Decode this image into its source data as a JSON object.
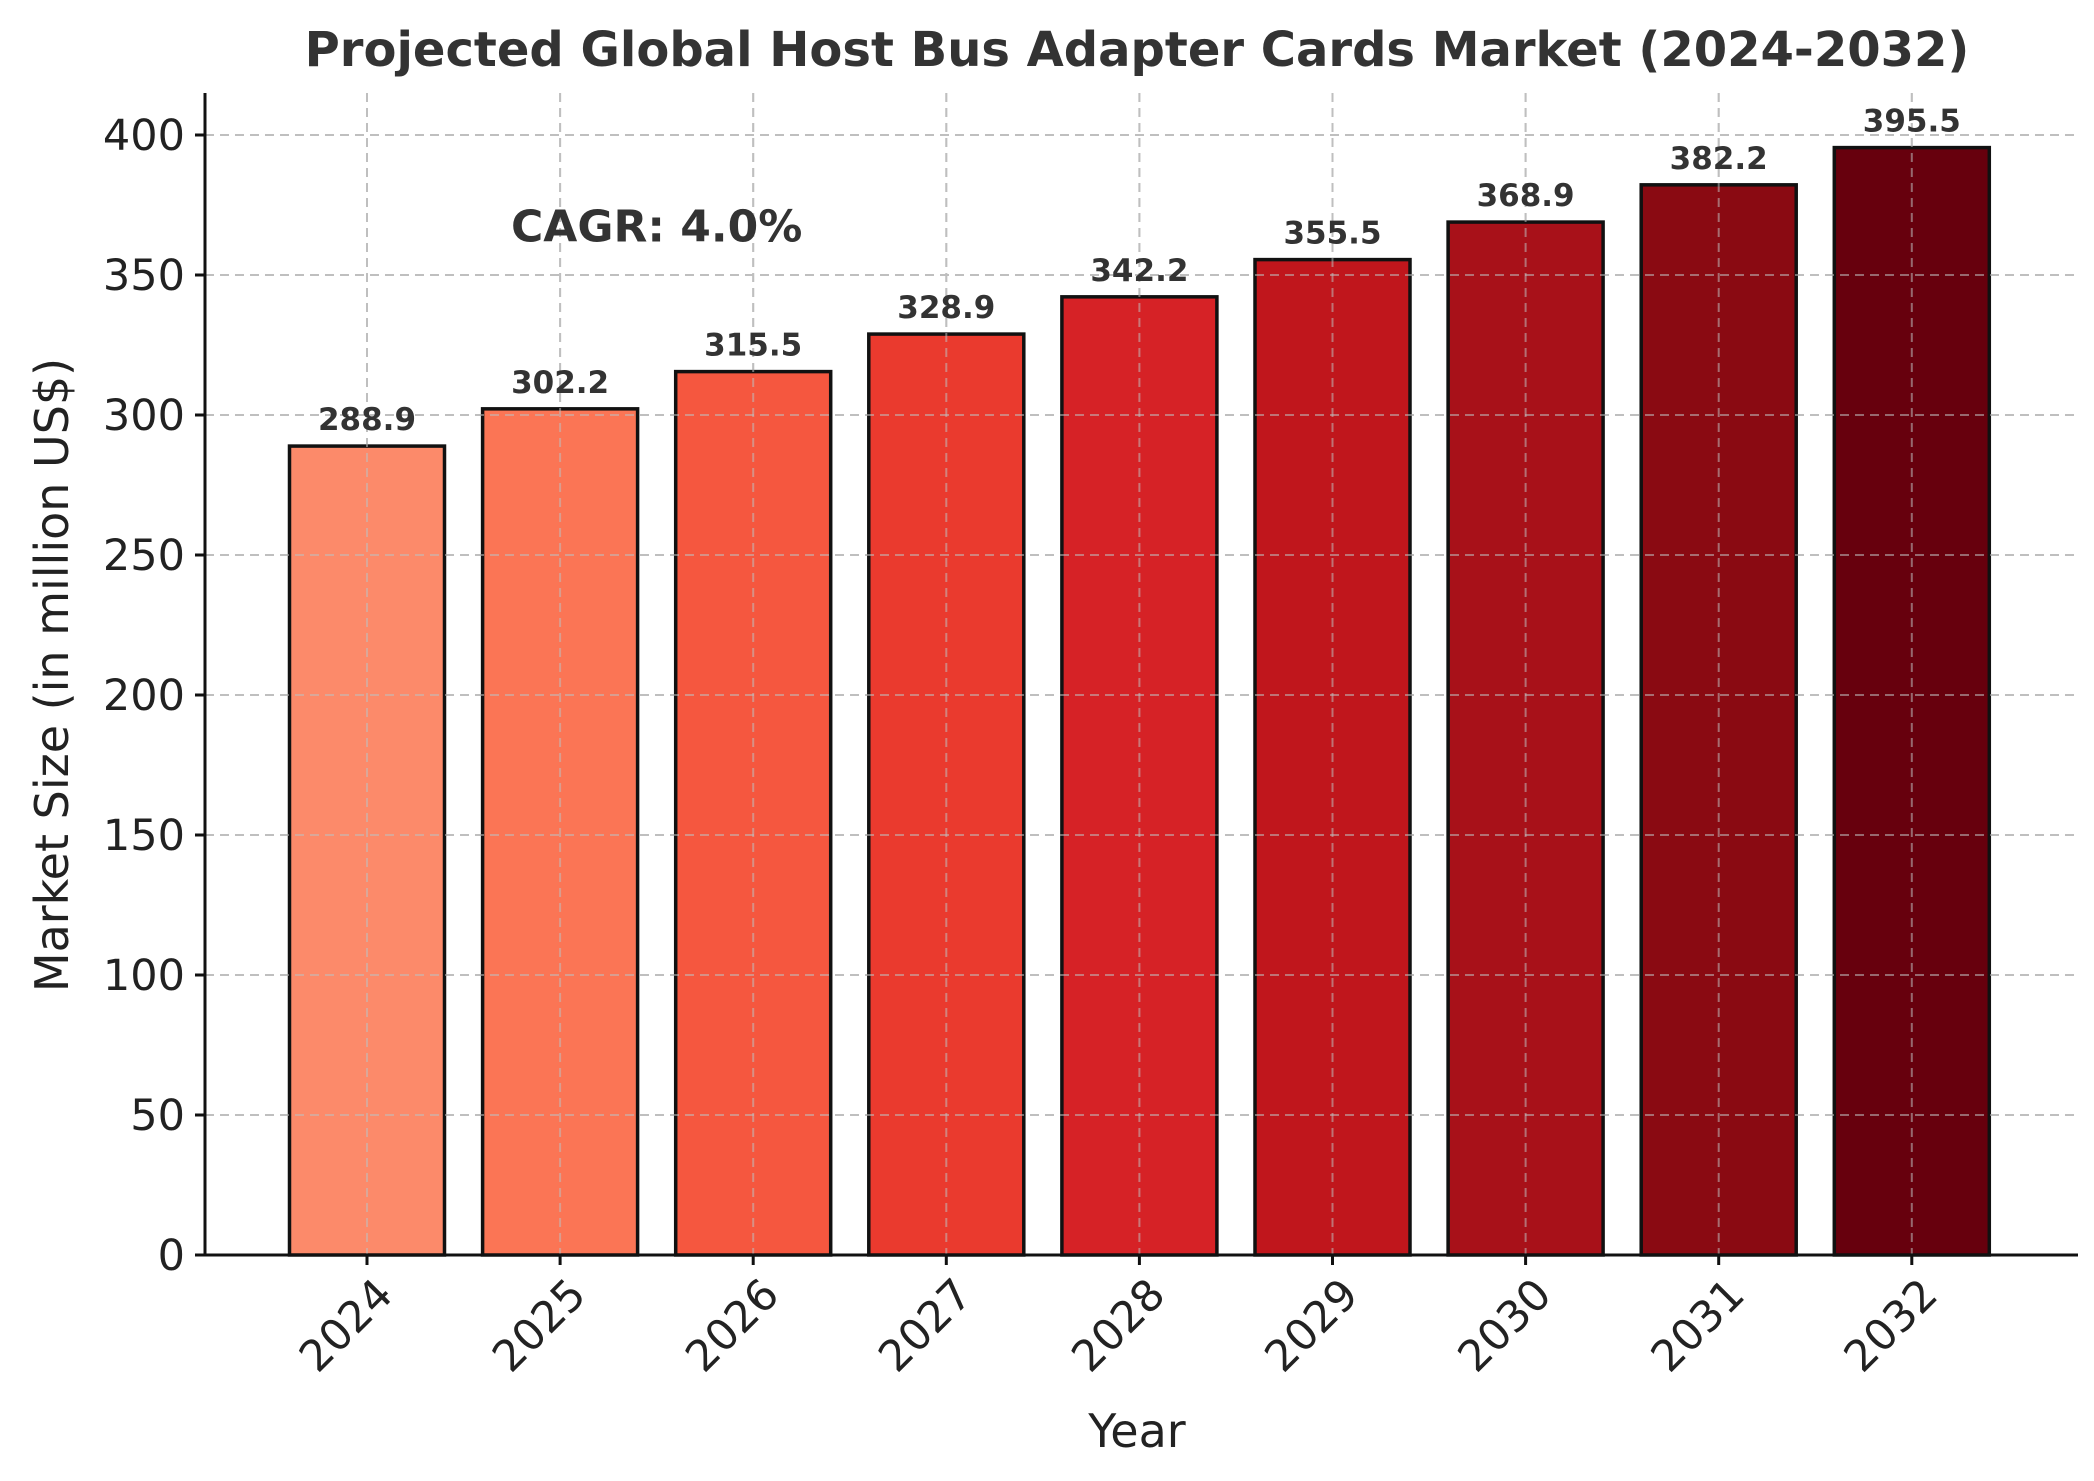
{
  "chart_data": {
    "type": "bar",
    "title": "Projected Global Host Bus Adapter Cards Market (2024-2032)",
    "xlabel": "Year",
    "ylabel": "Market Size (in million US$)",
    "categories": [
      "2024",
      "2025",
      "2026",
      "2027",
      "2028",
      "2029",
      "2030",
      "2031",
      "2032"
    ],
    "values": [
      288.9,
      302.2,
      315.5,
      328.9,
      342.2,
      355.5,
      368.9,
      382.2,
      395.5
    ],
    "value_labels": [
      "288.9",
      "302.2",
      "315.5",
      "328.9",
      "342.2",
      "355.5",
      "368.9",
      "382.2",
      "395.5"
    ],
    "bar_colors": [
      "#fc8a6a",
      "#fb7555",
      "#f5573f",
      "#ea3a2e",
      "#d62226",
      "#c0161c",
      "#a81119",
      "#8a0a12",
      "#67000d"
    ],
    "ylim": [
      0,
      415
    ],
    "yticks": [
      0,
      50,
      100,
      150,
      200,
      250,
      300,
      350,
      400
    ],
    "ytick_labels": [
      "0",
      "50",
      "100",
      "150",
      "200",
      "250",
      "300",
      "350",
      "400"
    ],
    "grid": true,
    "legend": "none",
    "annotations": [
      {
        "text": "CAGR: 4.0%",
        "x": 2025.5,
        "y": 362
      }
    ]
  }
}
